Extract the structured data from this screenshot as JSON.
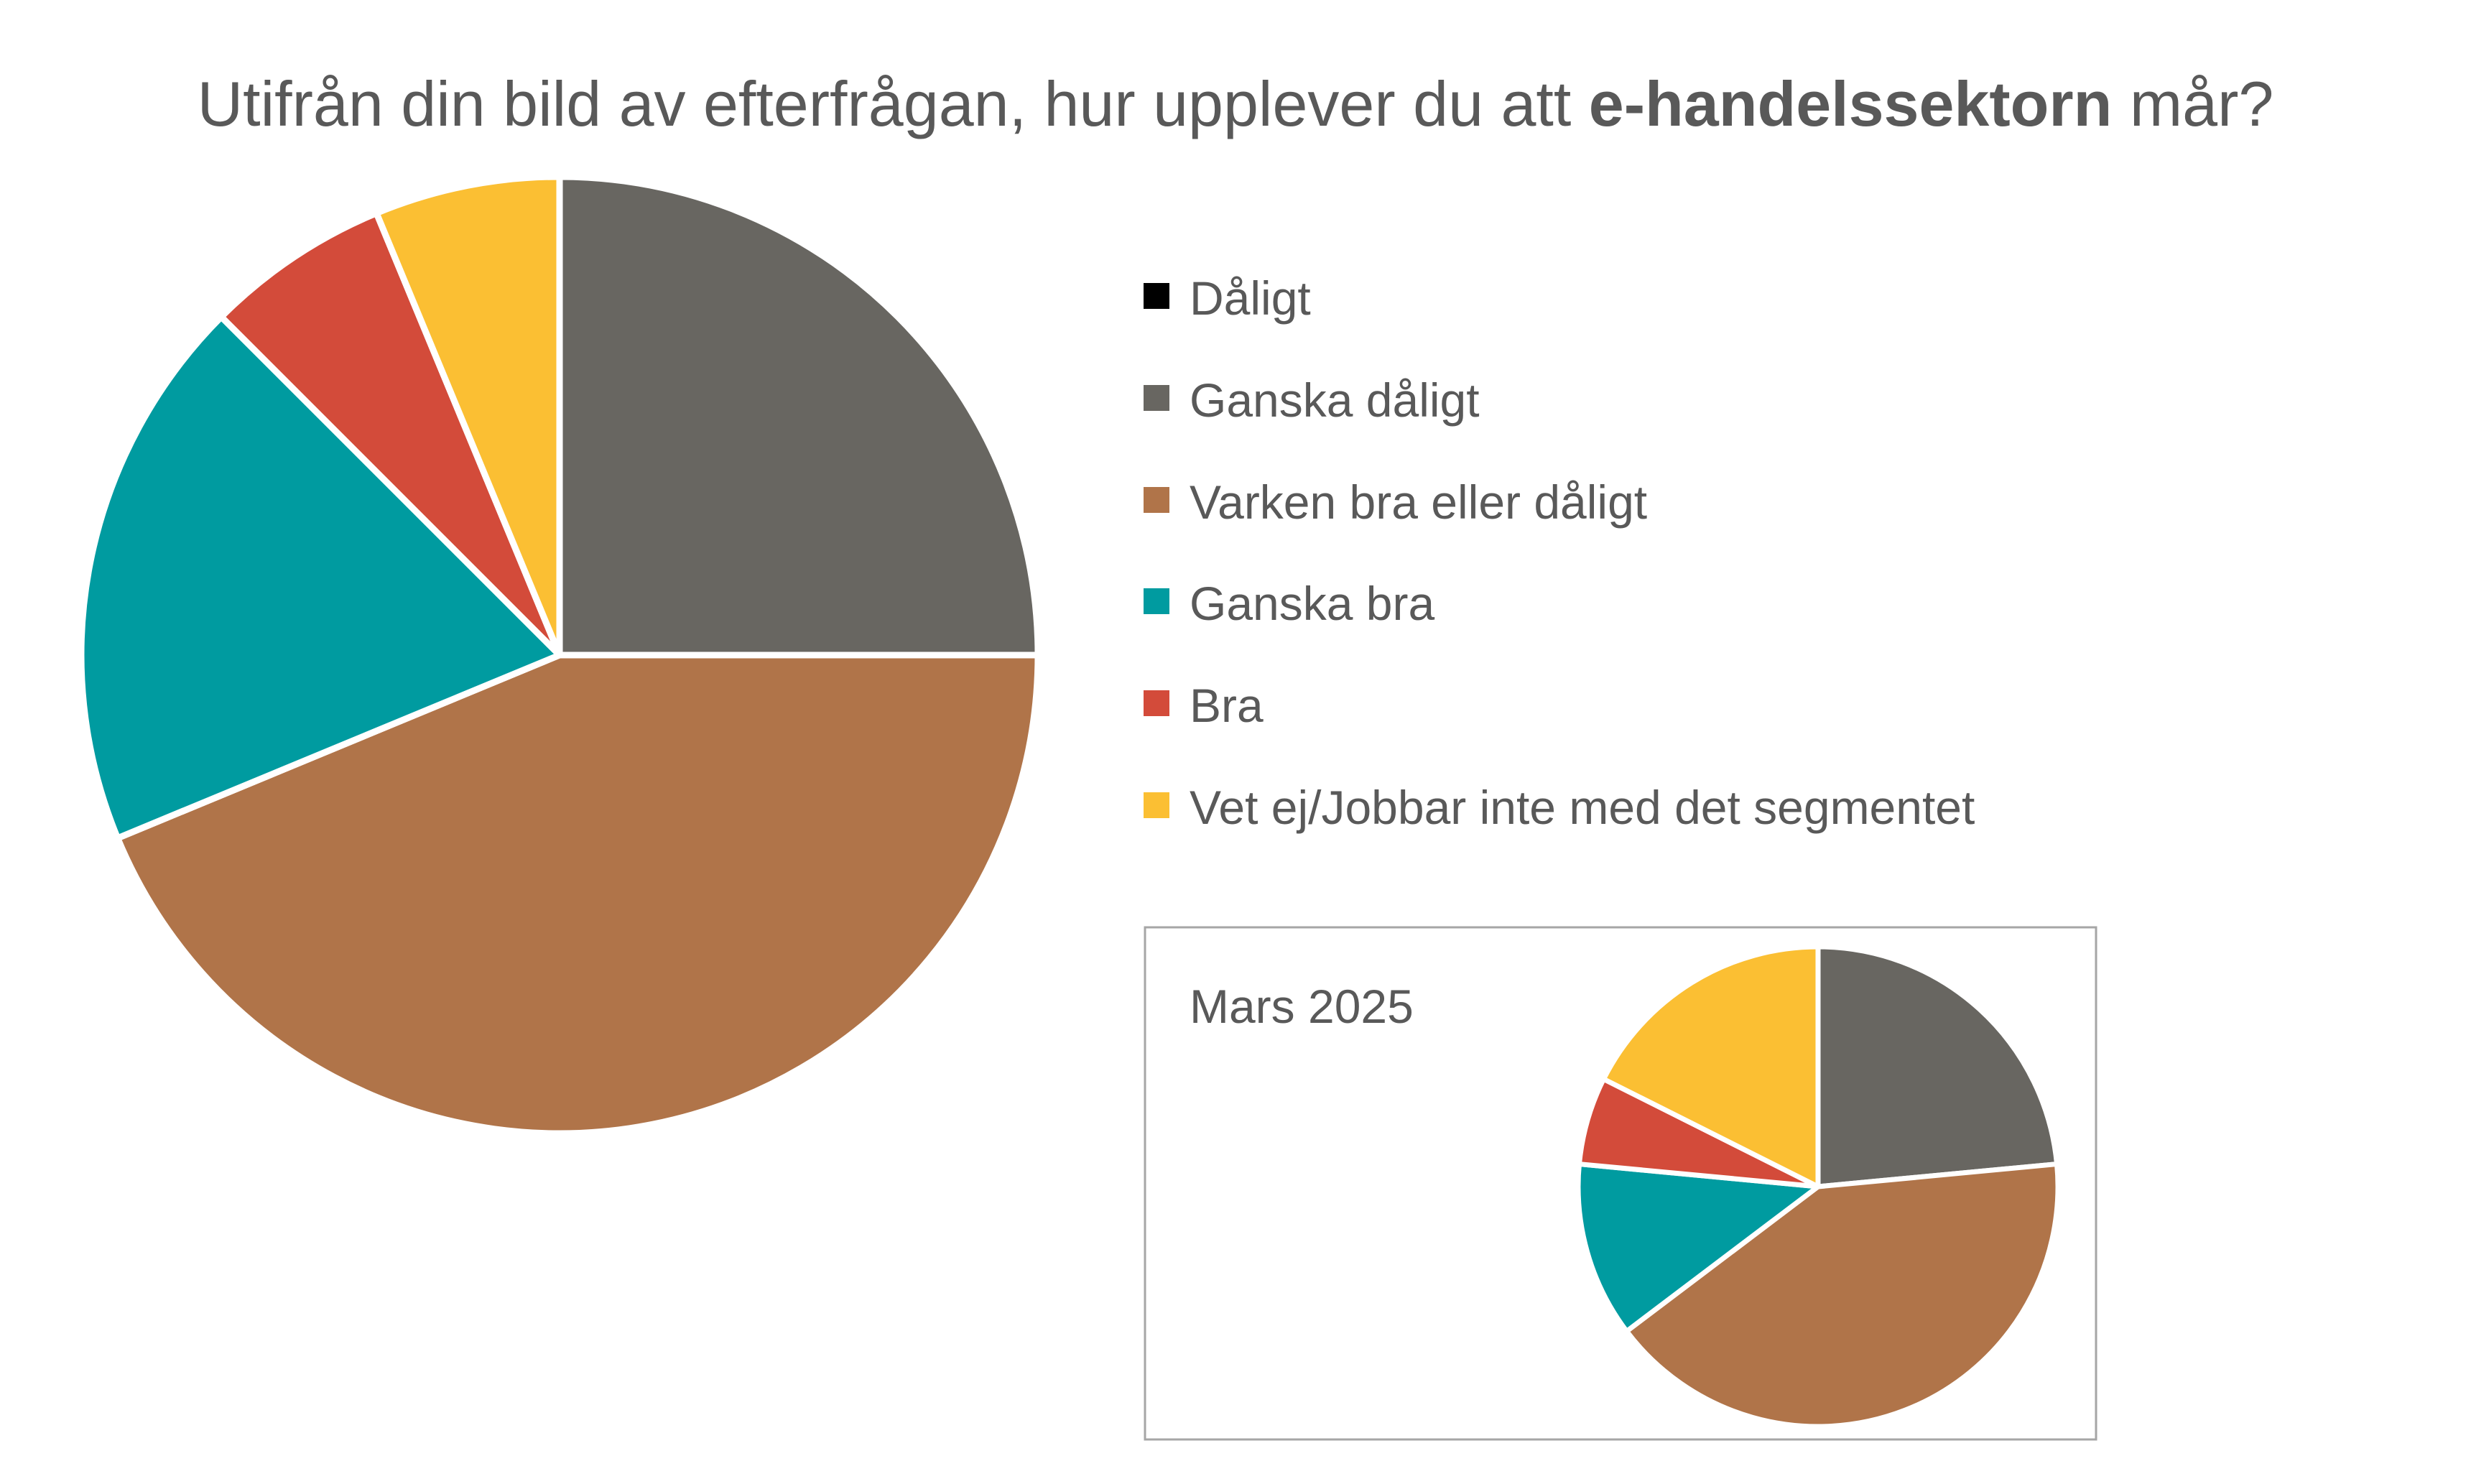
{
  "chart_data": [
    {
      "type": "pie",
      "title_parts": {
        "pre": "Utifrån din bild av efterfrågan, hur upplever du att ",
        "bold": "e-handelssektorn",
        "post": " mår?"
      },
      "categories": [
        "Dåligt",
        "Ganska dåligt",
        "Varken bra eller dåligt",
        "Ganska bra",
        "Bra",
        "Vet ej/Jobbar inte med det segmentet"
      ],
      "colors": [
        "#000000",
        "#686661",
        "#B07449",
        "#009BA0",
        "#D34B3A",
        "#FBBF33"
      ],
      "values": [
        0,
        25,
        43.75,
        18.75,
        6.25,
        6.25
      ],
      "unit": "%",
      "legend": "right",
      "start_angle": "12 o'clock, clockwise"
    },
    {
      "type": "pie",
      "label": "Mars 2025",
      "categories": [
        "Dåligt",
        "Ganska dåligt",
        "Varken bra eller dåligt",
        "Ganska bra",
        "Bra",
        "Vet ej/Jobbar inte med det segmentet"
      ],
      "colors": [
        "#000000",
        "#686661",
        "#B07449",
        "#009BA0",
        "#D34B3A",
        "#FBBF33"
      ],
      "values": [
        0,
        23.5,
        41.2,
        11.8,
        5.9,
        17.6
      ],
      "unit": "%"
    }
  ]
}
